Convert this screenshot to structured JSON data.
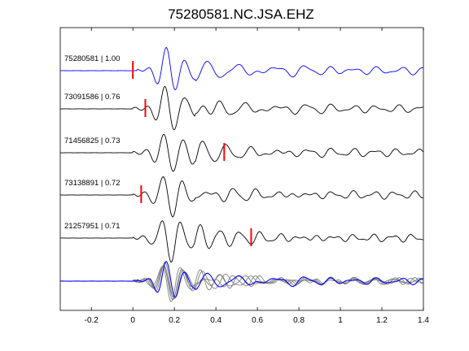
{
  "chart_data": {
    "type": "line",
    "title": "75280581.NC.JSA.EHZ",
    "xlabel": "",
    "ylabel": "",
    "xlim": [
      -0.35,
      1.4
    ],
    "grid": false,
    "x_ticks": [
      -0.2,
      0,
      0.2,
      0.4,
      0.6,
      0.8,
      1,
      1.2,
      1.4
    ],
    "x_tick_labels": [
      "-0.2",
      "0",
      "0.2",
      "0.4",
      "0.6",
      "0.8",
      "1",
      "1.2",
      "1.4"
    ],
    "colors": {
      "reference": "#0000ff",
      "match": "#000000",
      "stack": "#808080",
      "pick": "#ff0000"
    },
    "traces": [
      {
        "label": "75280581 | 1.00",
        "event_id": "75280581",
        "cc": 1.0,
        "pick_time": 0.0,
        "reference": true
      },
      {
        "label": "73091586 | 0.76",
        "event_id": "73091586",
        "cc": 0.76,
        "pick_time": 0.06
      },
      {
        "label": "71456825 | 0.73",
        "event_id": "71456825",
        "cc": 0.73,
        "pick_time": 0.44
      },
      {
        "label": "73138891 | 0.72",
        "event_id": "73138891",
        "cc": 0.72,
        "pick_time": 0.04
      },
      {
        "label": "21257951 | 0.71",
        "event_id": "21257951",
        "cc": 0.71,
        "pick_time": 0.57
      }
    ],
    "bottom_panel": "overlay of all traces; reference trace in blue, matches in gray"
  }
}
